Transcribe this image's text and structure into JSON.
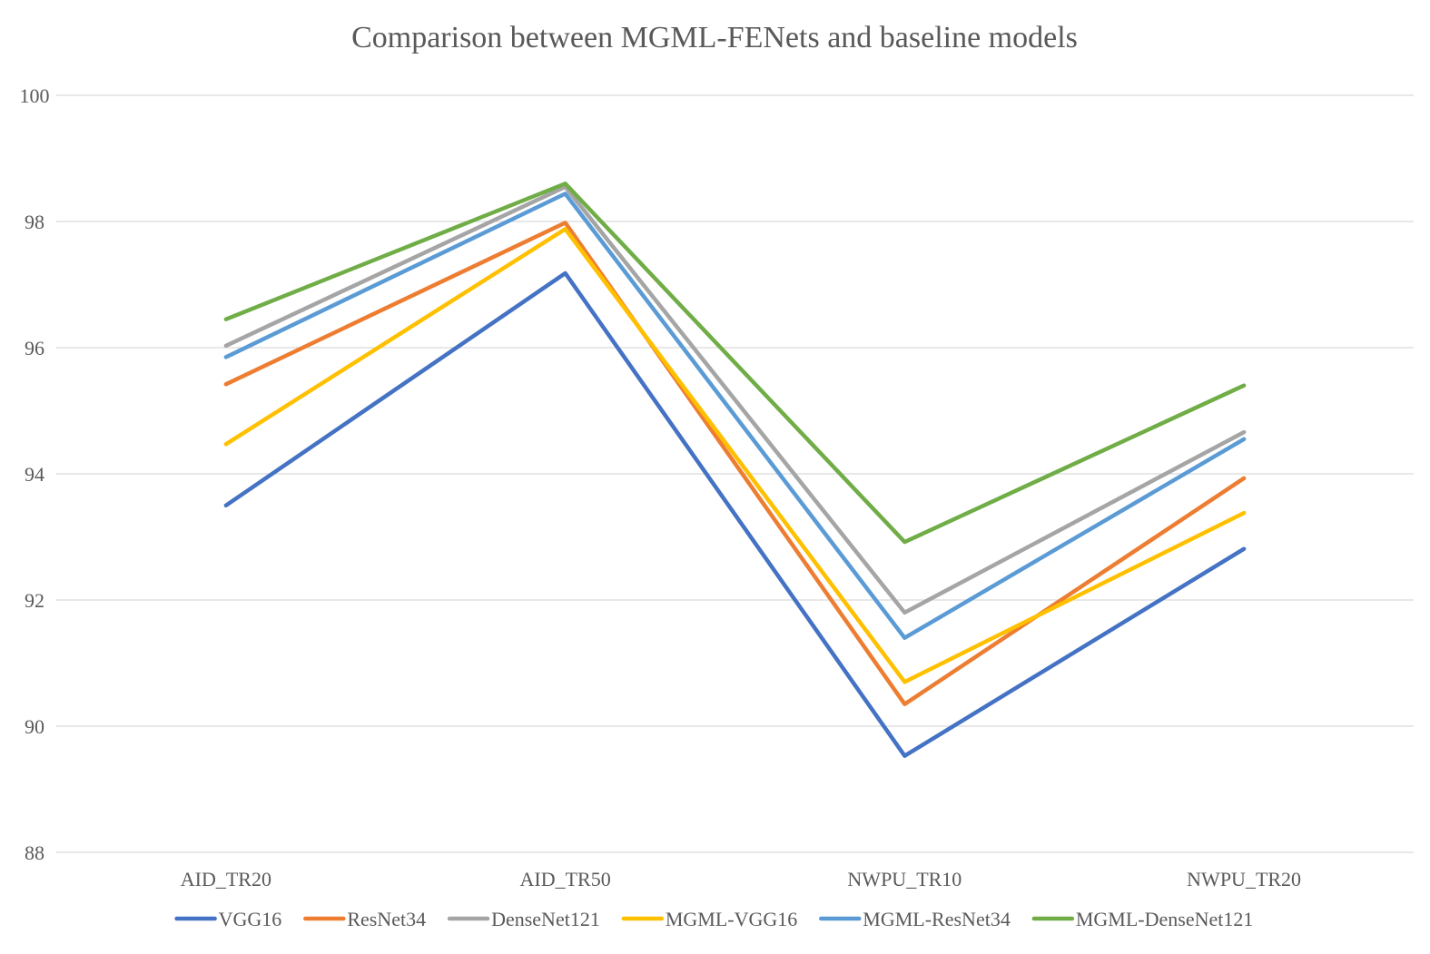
{
  "chart_data": {
    "type": "line",
    "title": "Comparison between MGML-FENets and baseline models",
    "xlabel": "",
    "ylabel": "",
    "categories": [
      "AID_TR20",
      "AID_TR50",
      "NWPU_TR10",
      "NWPU_TR20"
    ],
    "ylim": [
      88,
      100
    ],
    "yticks": [
      88,
      90,
      92,
      94,
      96,
      98,
      100
    ],
    "grid": true,
    "legend_position": "bottom",
    "series": [
      {
        "name": "VGG16",
        "color": "#4472C4",
        "values": [
          93.5,
          97.18,
          89.53,
          92.81
        ]
      },
      {
        "name": "ResNet34",
        "color": "#ED7D31",
        "values": [
          95.42,
          97.98,
          90.35,
          93.93
        ]
      },
      {
        "name": "DenseNet121",
        "color": "#A5A5A5",
        "values": [
          96.03,
          98.55,
          91.8,
          94.66
        ]
      },
      {
        "name": "MGML-VGG16",
        "color": "#FFC000",
        "values": [
          94.47,
          97.88,
          90.7,
          93.38
        ]
      },
      {
        "name": "MGML-ResNet34",
        "color": "#5B9BD5",
        "values": [
          95.85,
          98.44,
          91.4,
          94.55
        ]
      },
      {
        "name": "MGML-DenseNet121",
        "color": "#70AD47",
        "values": [
          96.45,
          98.6,
          92.92,
          95.4
        ]
      }
    ]
  }
}
